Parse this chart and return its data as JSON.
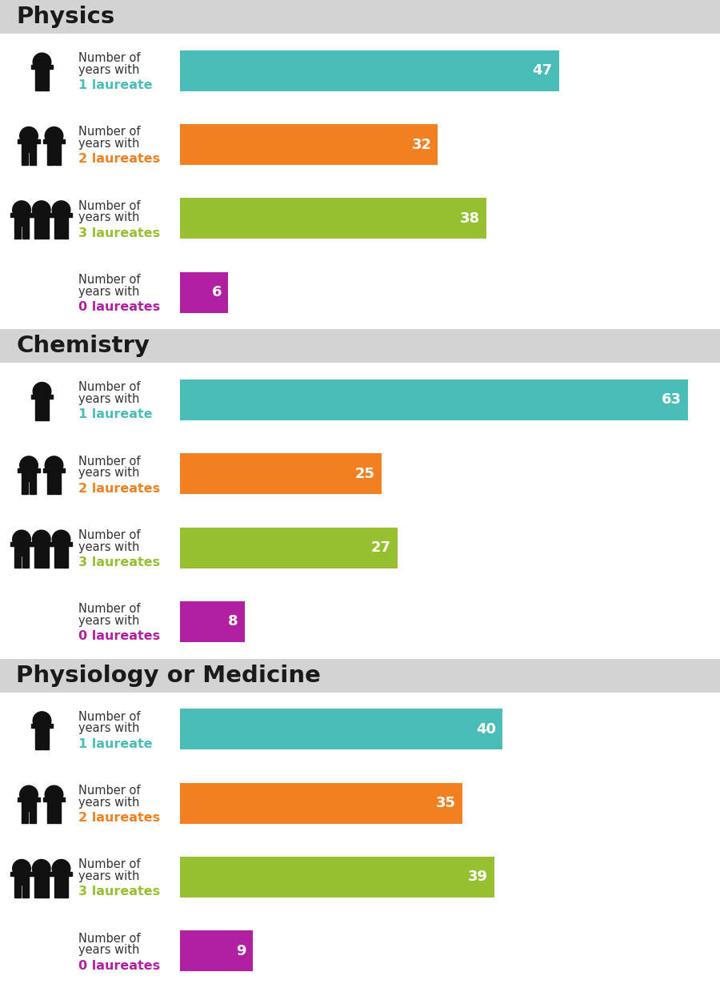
{
  "sections": [
    {
      "title": "Physics",
      "bars": [
        {
          "label_line1": "Number of",
          "label_line2": "years with",
          "label_laureate": "1 laureate",
          "value": 47,
          "color": "#4BBDB8",
          "label_color": "#4BBDB8",
          "icon_count": 1
        },
        {
          "label_line1": "Number of",
          "label_line2": "years with",
          "label_laureate": "2 laureates",
          "value": 32,
          "color": "#F28020",
          "label_color": "#F28020",
          "icon_count": 2
        },
        {
          "label_line1": "Number of",
          "label_line2": "years with",
          "label_laureate": "3 laureates",
          "value": 38,
          "color": "#96C030",
          "label_color": "#96C030",
          "icon_count": 3
        },
        {
          "label_line1": "Number of",
          "label_line2": "years with",
          "label_laureate": "0 laureates",
          "value": 6,
          "color": "#B020A0",
          "label_color": "#B020A0",
          "icon_count": 0
        }
      ]
    },
    {
      "title": "Chemistry",
      "bars": [
        {
          "label_line1": "Number of",
          "label_line2": "years with",
          "label_laureate": "1 laureate",
          "value": 63,
          "color": "#4BBDB8",
          "label_color": "#4BBDB8",
          "icon_count": 1
        },
        {
          "label_line1": "Number of",
          "label_line2": "years with",
          "label_laureate": "2 laureates",
          "value": 25,
          "color": "#F28020",
          "label_color": "#F28020",
          "icon_count": 2
        },
        {
          "label_line1": "Number of",
          "label_line2": "years with",
          "label_laureate": "3 laureates",
          "value": 27,
          "color": "#96C030",
          "label_color": "#96C030",
          "icon_count": 3
        },
        {
          "label_line1": "Number of",
          "label_line2": "years with",
          "label_laureate": "0 laureates",
          "value": 8,
          "color": "#B020A0",
          "label_color": "#B020A0",
          "icon_count": 0
        }
      ]
    },
    {
      "title": "Physiology or Medicine",
      "bars": [
        {
          "label_line1": "Number of",
          "label_line2": "years with",
          "label_laureate": "1 laureate",
          "value": 40,
          "color": "#4BBDB8",
          "label_color": "#4BBDB8",
          "icon_count": 1
        },
        {
          "label_line1": "Number of",
          "label_line2": "years with",
          "label_laureate": "2 laureates",
          "value": 35,
          "color": "#F28020",
          "label_color": "#F28020",
          "icon_count": 2
        },
        {
          "label_line1": "Number of",
          "label_line2": "years with",
          "label_laureate": "3 laureates",
          "value": 39,
          "color": "#96C030",
          "label_color": "#96C030",
          "icon_count": 3
        },
        {
          "label_line1": "Number of",
          "label_line2": "years with",
          "label_laureate": "0 laureates",
          "value": 9,
          "color": "#B020A0",
          "label_color": "#B020A0",
          "icon_count": 0
        }
      ]
    }
  ],
  "max_value": 65,
  "bg_color": "#FFFFFF",
  "header_bg_color": "#D3D3D3",
  "title_fontsize": 21,
  "bar_label_fontsize": 10.5,
  "value_fontsize": 13,
  "laureate_fontsize": 11.5
}
